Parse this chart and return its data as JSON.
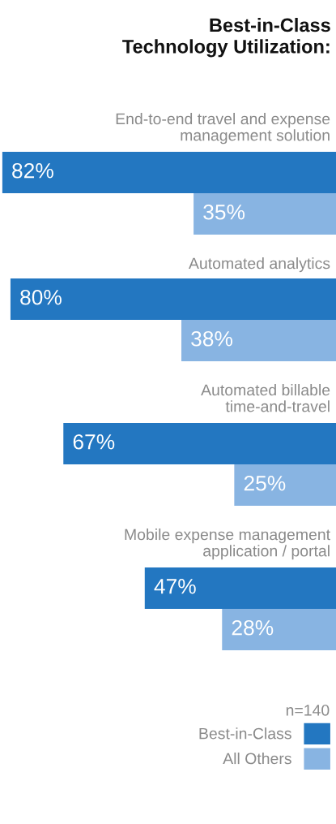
{
  "chart_data": {
    "type": "bar",
    "orientation": "horizontal",
    "title": "Best-in-Class\nTechnology Utilization:",
    "categories": [
      "End-to-end travel and expense\nmanagement solution",
      "Automated analytics",
      "Automated billable\ntime-and-travel",
      "Mobile expense management\napplication / portal"
    ],
    "series": [
      {
        "name": "Best-in-Class",
        "color": "#2377c1",
        "values": [
          82,
          80,
          67,
          47
        ],
        "value_labels": [
          "82%",
          "80%",
          "67%",
          "47%"
        ]
      },
      {
        "name": "All Others",
        "color": "#88b4e2",
        "values": [
          35,
          38,
          25,
          28
        ],
        "value_labels": [
          "35%",
          "38%",
          "25%",
          "28%"
        ]
      }
    ],
    "legend": "bottom right",
    "legend_title": "n=140"
  }
}
